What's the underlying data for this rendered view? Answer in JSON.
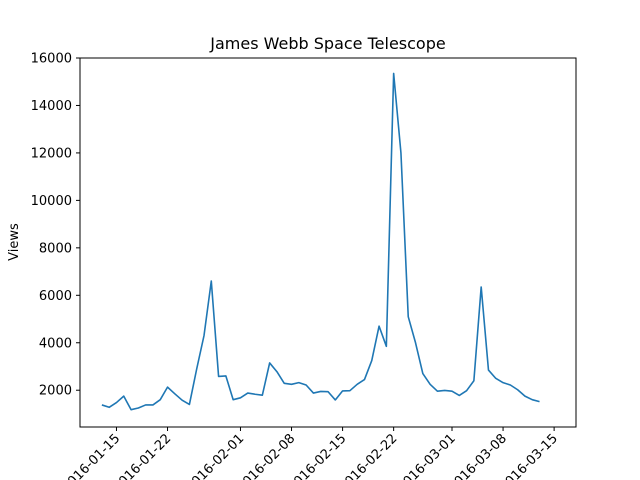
{
  "chart_data": {
    "type": "line",
    "title": "James Webb Space Telescope",
    "xlabel": "",
    "ylabel": "Views",
    "ylim": [
      450,
      16000
    ],
    "xlim": [
      "2016-01-10",
      "2016-03-18"
    ],
    "grid": false,
    "y_ticks": [
      2000,
      4000,
      6000,
      8000,
      10000,
      12000,
      14000,
      16000
    ],
    "x_ticks": [
      "2016-01-15",
      "2016-01-22",
      "2016-02-01",
      "2016-02-08",
      "2016-02-15",
      "2016-02-22",
      "2016-03-01",
      "2016-03-08",
      "2016-03-15"
    ],
    "color": "#1f77b4",
    "series": [
      {
        "x": [
          "2016-01-13",
          "2016-01-14",
          "2016-01-15",
          "2016-01-16",
          "2016-01-17",
          "2016-01-18",
          "2016-01-19",
          "2016-01-20",
          "2016-01-21",
          "2016-01-22",
          "2016-01-23",
          "2016-01-24",
          "2016-01-25",
          "2016-01-26",
          "2016-01-27",
          "2016-01-28",
          "2016-01-29",
          "2016-01-30",
          "2016-01-31",
          "2016-02-01",
          "2016-02-02",
          "2016-02-03",
          "2016-02-04",
          "2016-02-05",
          "2016-02-06",
          "2016-02-07",
          "2016-02-08",
          "2016-02-09",
          "2016-02-10",
          "2016-02-11",
          "2016-02-12",
          "2016-02-13",
          "2016-02-14",
          "2016-02-15",
          "2016-02-16",
          "2016-02-17",
          "2016-02-18",
          "2016-02-19",
          "2016-02-20",
          "2016-02-21",
          "2016-02-22",
          "2016-02-23",
          "2016-02-24",
          "2016-02-25",
          "2016-02-26",
          "2016-02-27",
          "2016-02-28",
          "2016-02-29",
          "2016-03-01",
          "2016-03-02",
          "2016-03-03",
          "2016-03-04",
          "2016-03-05",
          "2016-03-06",
          "2016-03-07",
          "2016-03-08",
          "2016-03-09",
          "2016-03-10",
          "2016-03-11",
          "2016-03-12",
          "2016-03-13"
        ],
        "values": [
          1380,
          1280,
          1480,
          1750,
          1180,
          1250,
          1380,
          1380,
          1600,
          2130,
          1850,
          1580,
          1400,
          2900,
          4300,
          6600,
          2580,
          2600,
          1600,
          1680,
          1880,
          1830,
          1790,
          3150,
          2780,
          2290,
          2250,
          2320,
          2220,
          1880,
          1950,
          1940,
          1590,
          1970,
          1980,
          2250,
          2450,
          3250,
          4700,
          3850,
          15350,
          12000,
          5100,
          4000,
          2700,
          2250,
          1960,
          1990,
          1960,
          1780,
          1980,
          2400,
          6350,
          2850,
          2500,
          2320,
          2220,
          2020,
          1750,
          1600,
          1520
        ]
      }
    ]
  }
}
